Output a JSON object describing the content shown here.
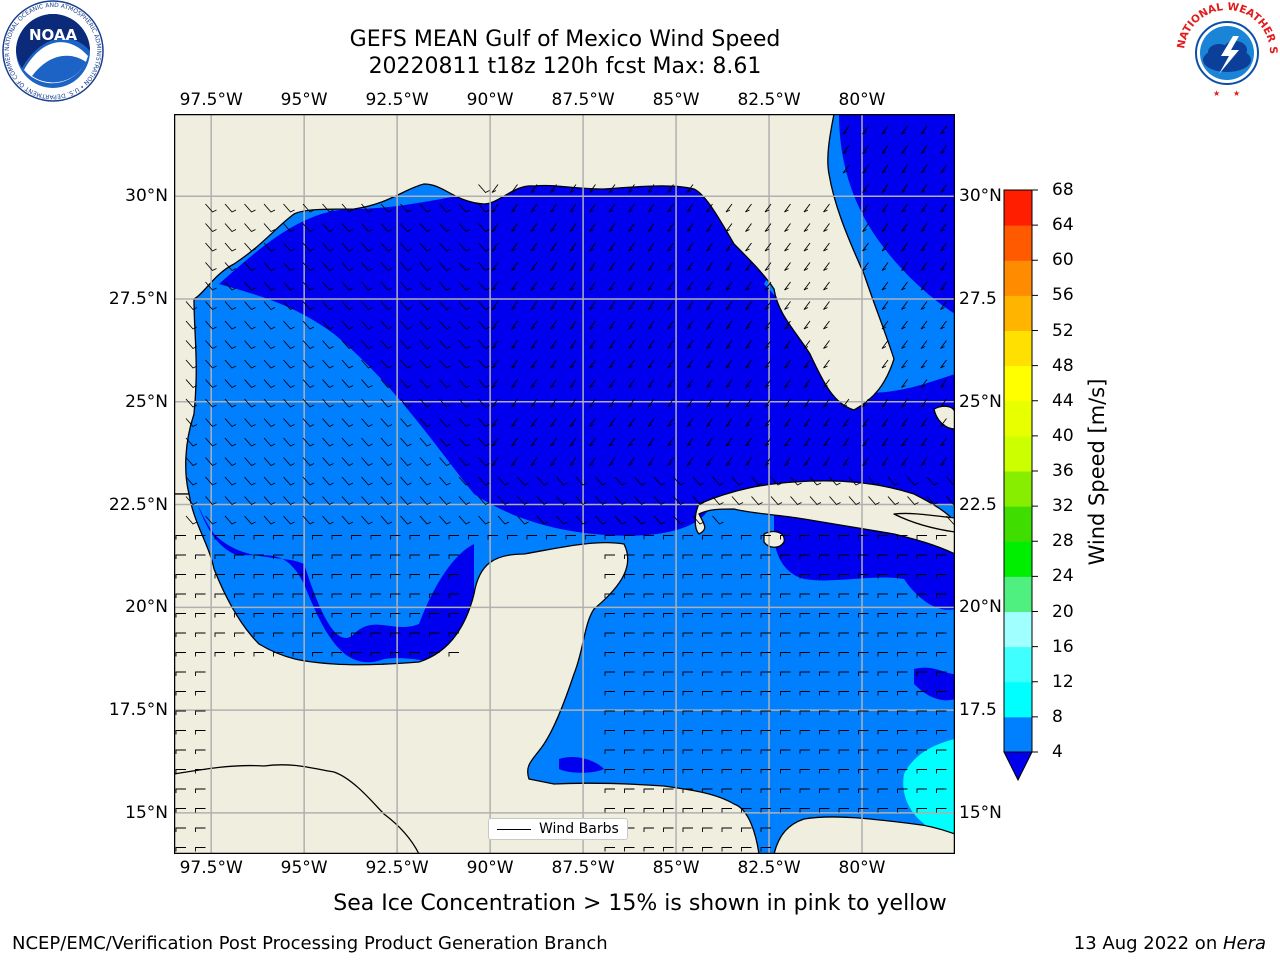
{
  "title": {
    "line1": "GEFS MEAN Gulf of Mexico Wind Speed",
    "line2": "20220811 t18z 120h fcst   Max: 8.61"
  },
  "map": {
    "lon_range": [
      -98.5,
      -77.5
    ],
    "lat_range": [
      14,
      32
    ],
    "lon_ticks": [
      {
        "value": -97.5,
        "label": "97.5°W"
      },
      {
        "value": -95,
        "label": "95°W"
      },
      {
        "value": -92.5,
        "label": "92.5°W"
      },
      {
        "value": -90,
        "label": "90°W"
      },
      {
        "value": -87.5,
        "label": "87.5°W"
      },
      {
        "value": -85,
        "label": "85°W"
      },
      {
        "value": -82.5,
        "label": "82.5°W"
      },
      {
        "value": -80,
        "label": "80°W"
      }
    ],
    "lat_ticks_left": [
      {
        "value": 30,
        "label": "30°N"
      },
      {
        "value": 27.5,
        "label": "27.5°N"
      },
      {
        "value": 25,
        "label": "25°N"
      },
      {
        "value": 22.5,
        "label": "22.5°N"
      },
      {
        "value": 20,
        "label": "20°N"
      },
      {
        "value": 17.5,
        "label": "17.5°N"
      },
      {
        "value": 15,
        "label": "15°N"
      }
    ],
    "lat_ticks_right": [
      {
        "value": 30,
        "label": "30°N"
      },
      {
        "value": 27.5,
        "label": "27.5"
      },
      {
        "value": 25,
        "label": "25°N"
      },
      {
        "value": 22.5,
        "label": "22.5"
      },
      {
        "value": 20,
        "label": "20°N"
      },
      {
        "value": 17.5,
        "label": "17.5"
      },
      {
        "value": 15,
        "label": "15°N"
      }
    ],
    "grid": true,
    "legend_label": "Wind Barbs",
    "legend_position": "bottom-center",
    "colors": {
      "land": "#efeedf",
      "speed_4_8": "#0080ff",
      "speed_below_4": "#0000ee",
      "speed_8_12": "#00ffff",
      "gridline": "#b0b0b0"
    }
  },
  "colorbar": {
    "label": "Wind Speed [m/s]",
    "ticks": [
      "4",
      "8",
      "12",
      "16",
      "20",
      "24",
      "28",
      "32",
      "36",
      "40",
      "44",
      "48",
      "52",
      "56",
      "60",
      "64",
      "68"
    ],
    "under_color": "#0000ee",
    "colors": [
      "#0080ff",
      "#00ffff",
      "#40ffff",
      "#a0ffff",
      "#50f080",
      "#00ee00",
      "#40dd00",
      "#88ee00",
      "#ccff00",
      "#e8ff00",
      "#ffff00",
      "#ffe000",
      "#ffb400",
      "#ff8c00",
      "#ff5a00",
      "#ff1e00"
    ]
  },
  "subtitle": "Sea Ice Concentration > 15% is shown in pink to yellow",
  "footer": {
    "left": "NCEP/EMC/Verification Post Processing Product Generation Branch",
    "right_date": "13 Aug 2022 on ",
    "right_machine": "Hera"
  },
  "logos": {
    "noaa_text": "NOAA",
    "noaa_ring": "NATIONAL OCEANIC AND ATMOSPHERIC ADMINISTRATION • U.S. DEPARTMENT OF COMMERCE •",
    "nws_ring": "NATIONAL WEATHER SERVICE"
  }
}
